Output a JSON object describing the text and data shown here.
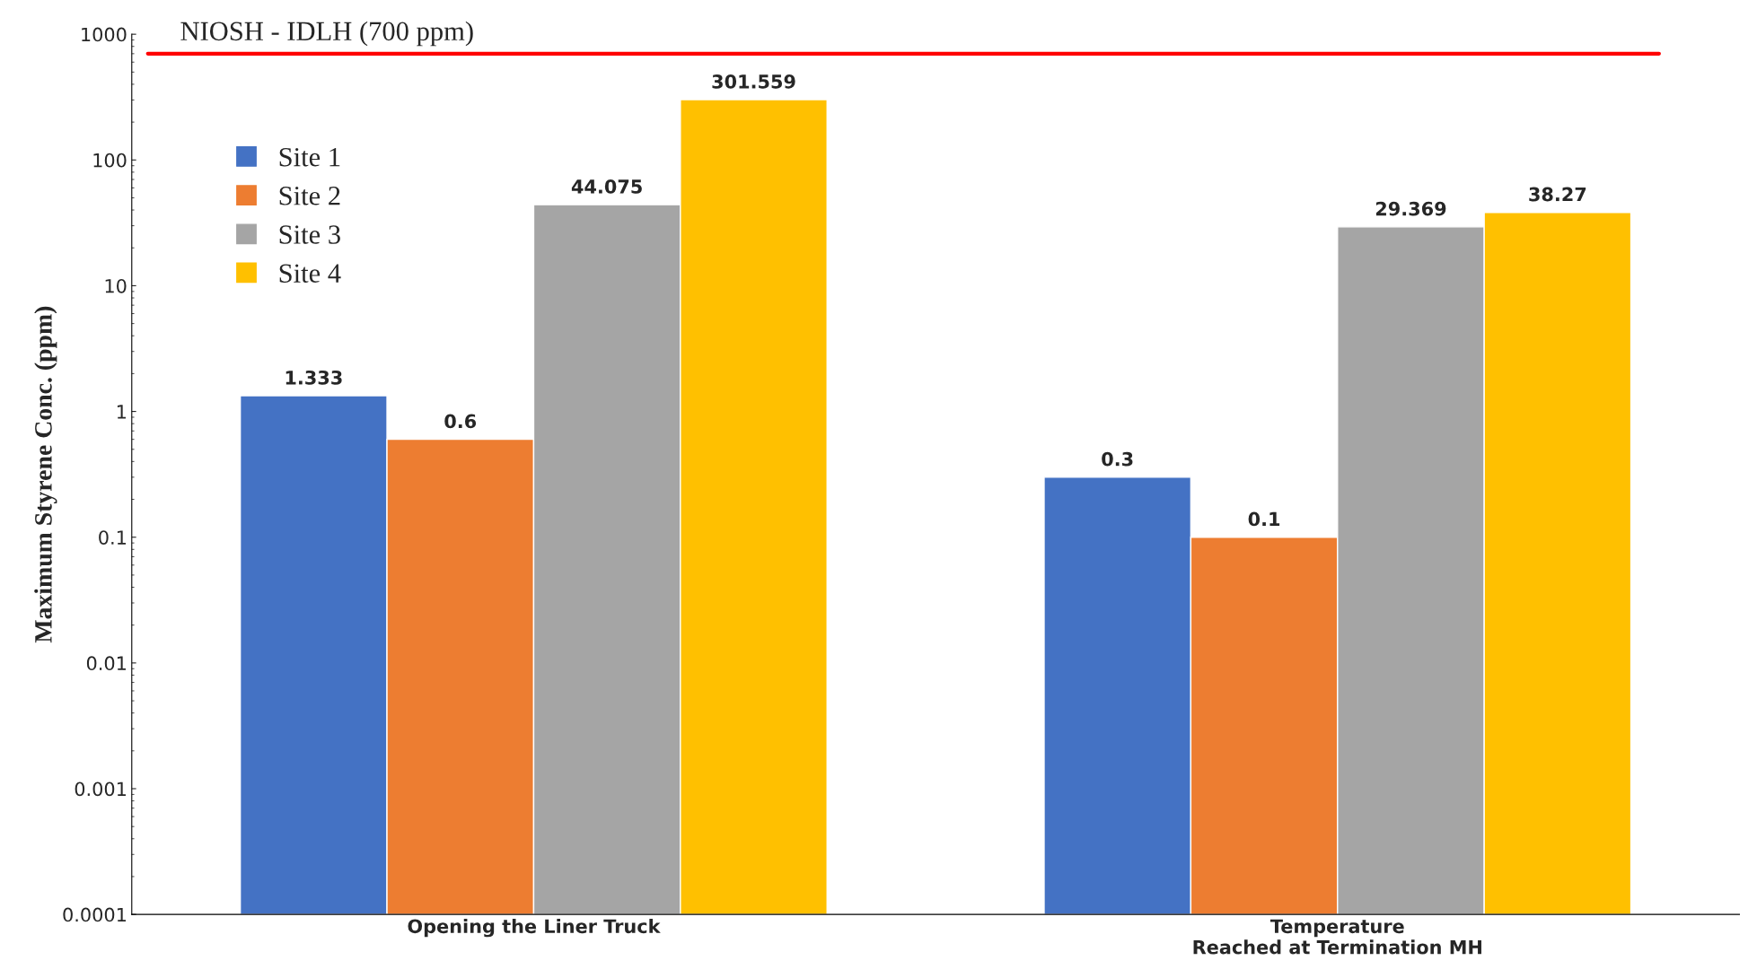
{
  "chart_data": {
    "type": "bar",
    "ylabel": "Maximum Styrene Conc. (ppm)",
    "categories": [
      "Opening the Liner Truck",
      "Temperature\nReached at Termination MH"
    ],
    "series": [
      {
        "name": "Site 1",
        "color": "#4472c4",
        "values": [
          1.333,
          0.3
        ]
      },
      {
        "name": "Site 2",
        "color": "#ed7d31",
        "values": [
          0.6,
          0.1
        ]
      },
      {
        "name": "Site 3",
        "color": "#a5a5a5",
        "values": [
          44.075,
          29.369
        ]
      },
      {
        "name": "Site 4",
        "color": "#ffc000",
        "values": [
          301.559,
          38.27
        ]
      }
    ],
    "log": "y",
    "ylim": [
      0.0001,
      1000
    ],
    "yticks": [
      0.0001,
      0.001,
      0.01,
      0.1,
      1,
      10,
      100,
      1000
    ],
    "ref_lines": [
      {
        "axis": "y",
        "value": 700,
        "label": "NIOSH - IDLH (700 ppm)",
        "color": "#ff0000",
        "line_style": "solid"
      }
    ],
    "data_labels": true,
    "grid": false,
    "legend": "top left"
  }
}
